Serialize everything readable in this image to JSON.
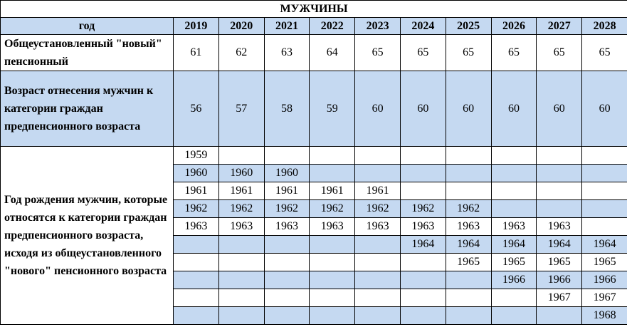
{
  "title": "МУЖЧИНЫ",
  "header": {
    "label": "год",
    "years": [
      2019,
      2020,
      2021,
      2022,
      2023,
      2024,
      2025,
      2026,
      2027,
      2028
    ]
  },
  "rows": [
    {
      "label": "Общеустановленный \"новый\" пенсионный",
      "values": [
        61,
        62,
        63,
        64,
        65,
        65,
        65,
        65,
        65,
        65
      ]
    },
    {
      "label": "Возраст отнесения мужчин к категории граждан предпенсионного возраста",
      "values": [
        56,
        57,
        58,
        59,
        60,
        60,
        60,
        60,
        60,
        60
      ]
    }
  ],
  "birth_years": {
    "label": "Год рождения мужчин, которые относятся к категории граждан предпенсионного возраста, исходя из общеустановленного \"нового\" пенсионного возраста",
    "rows": [
      [
        1959,
        null,
        null,
        null,
        null,
        null,
        null,
        null,
        null,
        null
      ],
      [
        1960,
        1960,
        1960,
        null,
        null,
        null,
        null,
        null,
        null,
        null
      ],
      [
        1961,
        1961,
        1961,
        1961,
        1961,
        null,
        null,
        null,
        null,
        null
      ],
      [
        1962,
        1962,
        1962,
        1962,
        1962,
        1962,
        1962,
        null,
        null,
        null
      ],
      [
        1963,
        1963,
        1963,
        1963,
        1963,
        1963,
        1963,
        1963,
        1963,
        null
      ],
      [
        null,
        null,
        null,
        null,
        null,
        1964,
        1964,
        1964,
        1964,
        1964
      ],
      [
        null,
        null,
        null,
        null,
        null,
        null,
        1965,
        1965,
        1965,
        1965
      ],
      [
        null,
        null,
        null,
        null,
        null,
        null,
        null,
        1966,
        1966,
        1966
      ],
      [
        null,
        null,
        null,
        null,
        null,
        null,
        null,
        null,
        1967,
        1967
      ],
      [
        null,
        null,
        null,
        null,
        null,
        null,
        null,
        null,
        null,
        1968
      ]
    ]
  }
}
